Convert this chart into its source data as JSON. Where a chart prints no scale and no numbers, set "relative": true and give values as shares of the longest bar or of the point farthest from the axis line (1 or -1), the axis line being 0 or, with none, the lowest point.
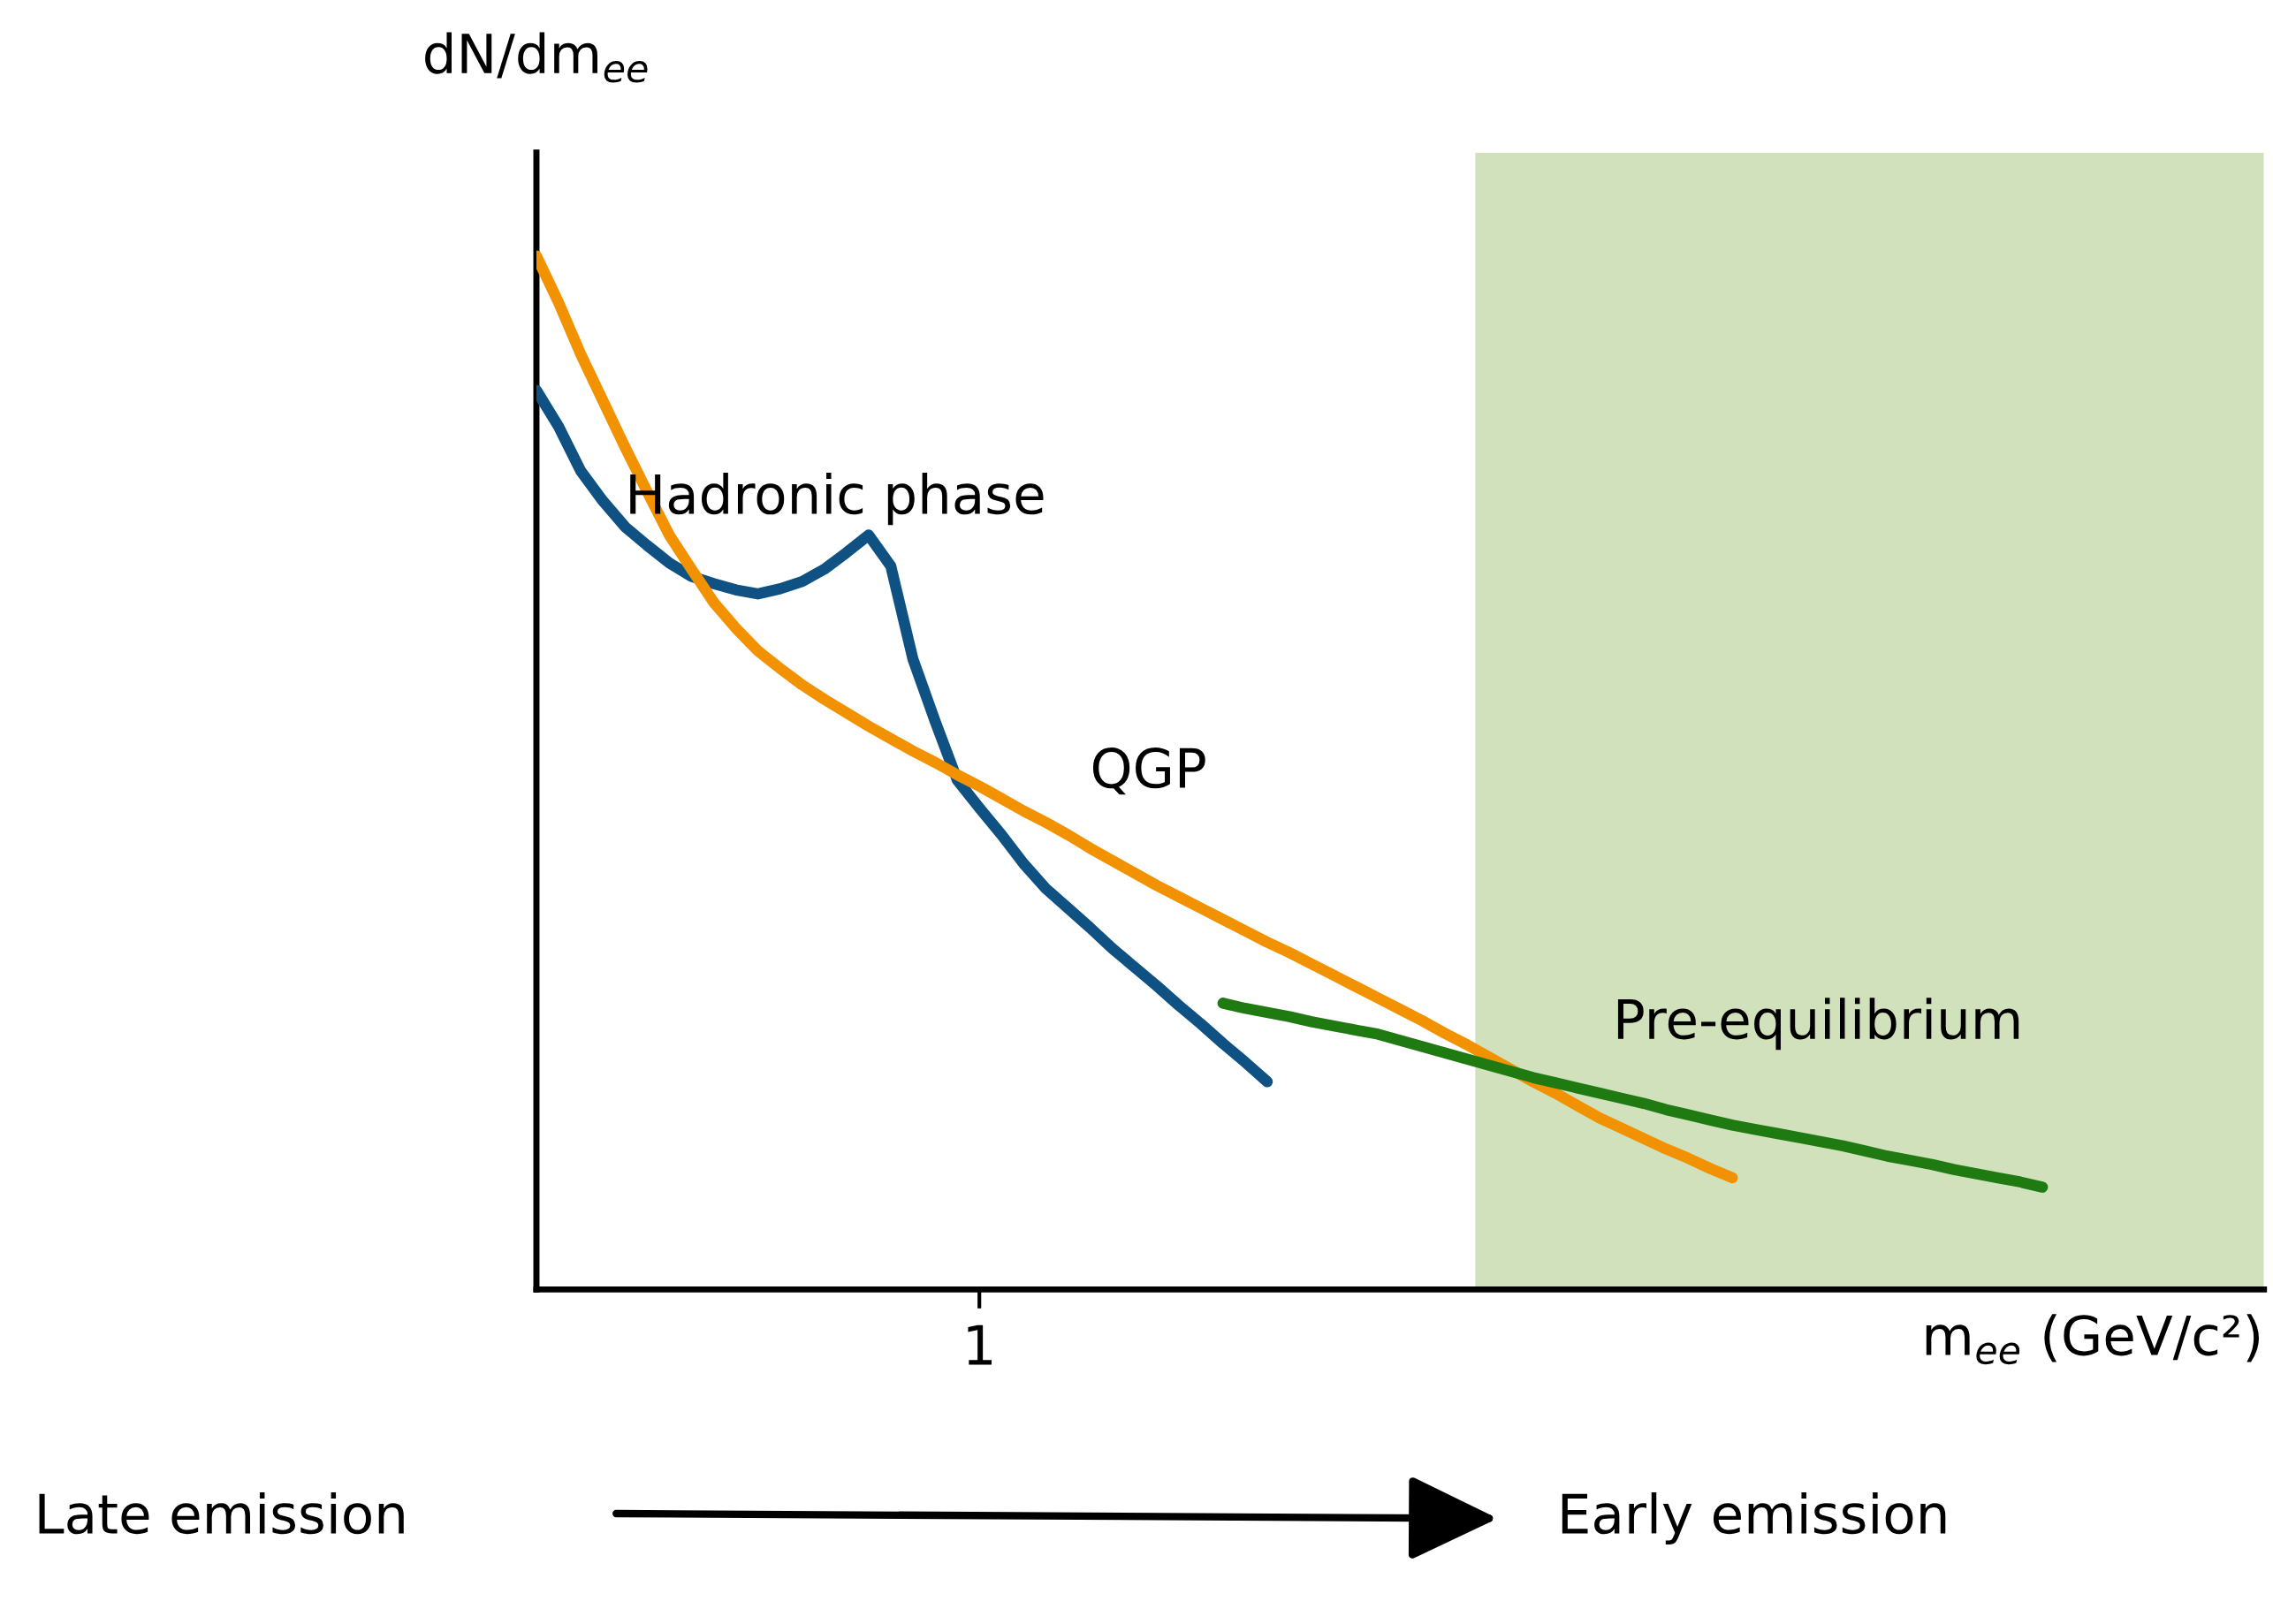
{
  "chart_data": {
    "type": "line",
    "relative": true,
    "xlabel": "m$_{ee}$ (GeV/c²)",
    "ylabel": "dN/dm$_{ee}$",
    "legend": false,
    "categories": [
      null,
      null,
      null,
      null,
      null,
      null,
      null,
      null,
      null,
      null,
      null,
      null,
      null,
      null,
      null,
      null,
      null,
      null,
      null,
      null,
      null,
      null,
      null,
      null,
      null,
      null,
      null,
      null,
      null,
      null,
      null,
      null,
      null,
      null,
      null,
      null,
      null,
      null,
      null,
      null,
      null,
      null,
      null,
      null,
      null,
      null,
      null,
      null,
      null,
      null,
      null,
      null,
      null,
      null,
      null,
      null,
      null,
      null,
      null,
      null,
      null,
      null,
      null,
      null,
      null,
      null,
      null,
      null,
      null,
      null,
      null,
      null,
      null,
      null,
      null,
      null,
      null,
      null,
      null
    ],
    "series": [
      {
        "name": "Hadronic phase",
        "color": "#0f5182",
        "values": [
          0.87,
          0.835,
          0.792,
          0.763,
          0.738,
          0.72,
          0.703,
          0.69,
          0.683,
          0.677,
          0.673,
          0.678,
          0.685,
          0.697,
          0.713,
          0.73,
          0.7,
          0.61,
          0.55,
          0.493,
          0.466,
          0.44,
          0.412,
          0.388,
          0.369,
          0.35,
          0.33,
          0.312,
          0.294,
          0.275,
          0.257,
          0.238,
          0.22,
          0.201,
          null,
          null,
          null,
          null,
          null,
          null,
          null,
          null,
          null,
          null,
          null,
          null,
          null,
          null,
          null,
          null,
          null,
          null,
          null,
          null,
          null,
          null,
          null,
          null,
          null,
          null,
          null,
          null,
          null,
          null,
          null,
          null,
          null,
          null,
          null,
          null,
          null,
          null,
          null,
          null,
          null,
          null,
          null,
          null,
          null
        ]
      },
      {
        "name": "QGP",
        "color": "#f39200",
        "values": [
          1.0,
          0.955,
          0.905,
          0.86,
          0.815,
          0.772,
          0.73,
          0.697,
          0.665,
          0.64,
          0.618,
          0.601,
          0.585,
          0.571,
          0.558,
          0.545,
          0.533,
          0.521,
          0.51,
          0.498,
          0.487,
          0.475,
          0.463,
          0.452,
          0.44,
          0.427,
          0.415,
          0.403,
          0.391,
          0.38,
          0.369,
          0.358,
          0.347,
          0.336,
          0.326,
          0.315,
          0.304,
          0.293,
          0.282,
          0.271,
          0.26,
          0.248,
          0.237,
          0.225,
          0.213,
          0.201,
          0.19,
          0.178,
          0.166,
          0.156,
          0.146,
          0.136,
          0.127,
          0.117,
          0.108,
          null,
          null,
          null,
          null,
          null,
          null,
          null,
          null,
          null,
          null,
          null,
          null,
          null,
          null,
          null,
          null,
          null,
          null,
          null,
          null,
          null,
          null,
          null,
          null
        ]
      },
      {
        "name": "Pre-equilibrium",
        "color": "#1f7a12",
        "values": [
          null,
          null,
          null,
          null,
          null,
          null,
          null,
          null,
          null,
          null,
          null,
          null,
          null,
          null,
          null,
          null,
          null,
          null,
          null,
          null,
          null,
          null,
          null,
          null,
          null,
          null,
          null,
          null,
          null,
          null,
          null,
          0.277,
          0.272,
          0.268,
          0.264,
          0.259,
          0.255,
          0.251,
          0.247,
          0.241,
          0.235,
          0.229,
          0.223,
          0.217,
          0.211,
          0.205,
          0.2,
          0.195,
          0.19,
          0.185,
          0.18,
          0.174,
          0.169,
          0.164,
          0.159,
          0.155,
          0.151,
          0.147,
          0.143,
          0.139,
          0.134,
          0.129,
          0.125,
          0.121,
          0.116,
          0.112,
          0.108,
          0.104,
          0.099,
          null,
          null,
          null,
          null,
          null,
          null,
          null,
          null,
          null,
          null
        ]
      }
    ],
    "annotations": [
      "1",
      "Late emission",
      "Early emission"
    ]
  }
}
